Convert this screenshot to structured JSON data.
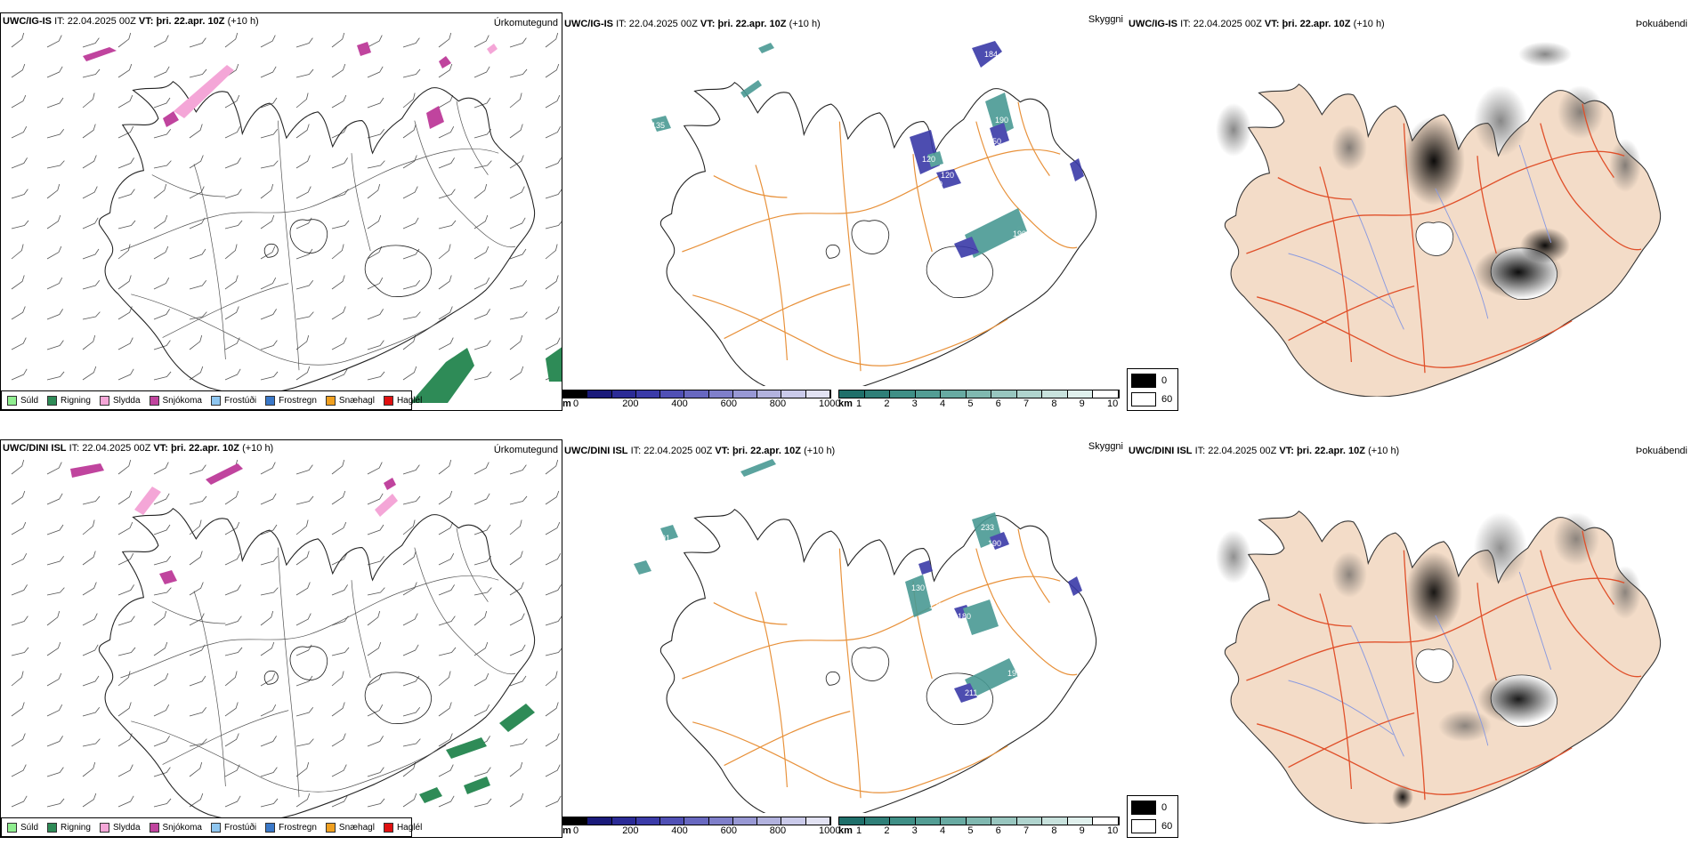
{
  "rows": [
    {
      "model": "UWC/IG-IS",
      "it_label": "IT:",
      "it_value": "22.04.2025 00Z",
      "vt_label": "VT:",
      "vt_value": "þri. 22.apr. 10Z",
      "lead": "(+10 h)"
    },
    {
      "model": "UWC/DINI ISL",
      "it_label": "IT:",
      "it_value": "22.04.2025 00Z",
      "vt_label": "VT:",
      "vt_value": "þri. 22.apr. 10Z",
      "lead": "(+10 h)"
    }
  ],
  "panel_titles": {
    "precip_type": "Úrkomutegund",
    "visibility": "Skyggni",
    "fog": "Þokuábendi"
  },
  "precip_legend": [
    {
      "label": "Súld",
      "color": "#90ee90"
    },
    {
      "label": "Rigning",
      "color": "#2e8b57"
    },
    {
      "label": "Slydda",
      "color": "#f4a6d7"
    },
    {
      "label": "Snjókoma",
      "color": "#c0449e"
    },
    {
      "label": "Frostúði",
      "color": "#8ec6f0"
    },
    {
      "label": "Frostregn",
      "color": "#3a78c8"
    },
    {
      "label": "Snæhagl",
      "color": "#f0a020"
    },
    {
      "label": "Haglél",
      "color": "#e01010"
    }
  ],
  "vis_m_scale": {
    "unit": "m",
    "ticks": [
      "0",
      "200",
      "400",
      "600",
      "800",
      "1000"
    ],
    "colors": [
      "#000000",
      "#1a1a7a",
      "#2b2b96",
      "#3b3ba8",
      "#5050b5",
      "#6868c0",
      "#7f7fca",
      "#9898d4",
      "#b2b2de",
      "#cacaea",
      "#e2e2f3"
    ]
  },
  "vis_km_scale": {
    "unit": "km",
    "ticks": [
      "1",
      "2",
      "3",
      "4",
      "5",
      "6",
      "7",
      "8",
      "9",
      "10"
    ],
    "colors": [
      "#1f6f6a",
      "#2f7f78",
      "#3f8f86",
      "#539d94",
      "#68aaa2",
      "#80b8b0",
      "#98c6bf",
      "#b0d4ce",
      "#c8e2dd",
      "#e0f0ed",
      "#ffffff"
    ]
  },
  "fog_legend": [
    {
      "label": "0",
      "color": "#000000"
    },
    {
      "label": "60",
      "color": "#ffffff"
    }
  ],
  "vis_labels_top": [
    "184",
    "135",
    "190",
    "150",
    "120",
    "120",
    "190",
    "136",
    "120"
  ],
  "vis_labels_bottom": [
    "191",
    "233",
    "190",
    "130",
    "128",
    "180",
    "195",
    "211"
  ],
  "colors": {
    "coast": "#222222",
    "roads": "#e8913a",
    "fog_land": "#f3dcc8",
    "fog_roads": "#e0502a",
    "fog_rivers": "#8a9ae0",
    "rain": "#2e8b57",
    "snow": "#c0449e",
    "sleet": "#f4a6d7",
    "teal": "#4a9a94",
    "blue": "#3a3aa8"
  }
}
